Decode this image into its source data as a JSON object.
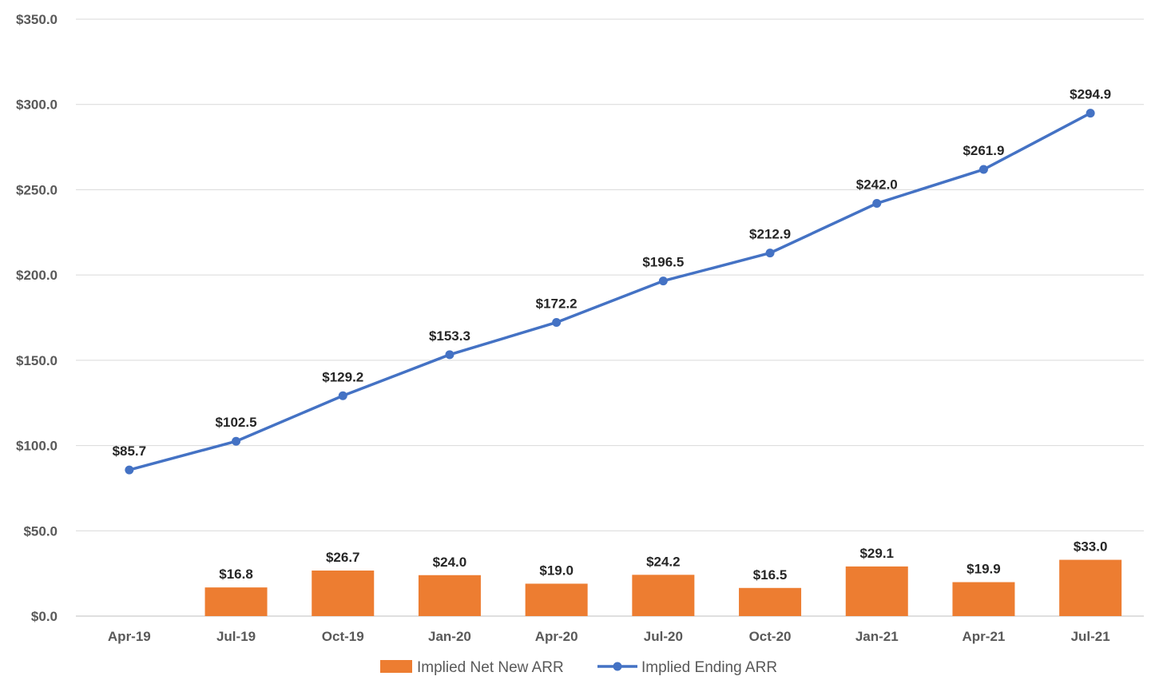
{
  "chart_data": {
    "type": "bar",
    "categories": [
      "Apr-19",
      "Jul-19",
      "Oct-19",
      "Jan-20",
      "Apr-20",
      "Jul-20",
      "Oct-20",
      "Jan-21",
      "Apr-21",
      "Jul-21"
    ],
    "series": [
      {
        "name": "Implied Net New ARR",
        "type": "bar",
        "color": "#ED7D31",
        "values": [
          null,
          16.8,
          26.7,
          24.0,
          19.0,
          24.2,
          16.5,
          29.1,
          19.9,
          33.0
        ],
        "labels": [
          "",
          "$16.8",
          "$26.7",
          "$24.0",
          "$19.0",
          "$24.2",
          "$16.5",
          "$29.1",
          "$19.9",
          "$33.0"
        ]
      },
      {
        "name": "Implied Ending ARR",
        "type": "line",
        "color": "#4472C4",
        "values": [
          85.7,
          102.5,
          129.2,
          153.3,
          172.2,
          196.5,
          212.9,
          242.0,
          261.9,
          294.9
        ],
        "labels": [
          "$85.7",
          "$102.5",
          "$129.2",
          "$153.3",
          "$172.2",
          "$196.5",
          "$212.9",
          "$242.0",
          "$261.9",
          "$294.9"
        ]
      }
    ],
    "yticks": [
      0,
      50,
      100,
      150,
      200,
      250,
      300,
      350
    ],
    "ytick_labels": [
      "$0.0",
      "$50.0",
      "$100.0",
      "$150.0",
      "$200.0",
      "$250.0",
      "$300.0",
      "$350.0"
    ],
    "ylim": [
      0,
      350
    ],
    "grid": true,
    "legend_position": "bottom",
    "title": "",
    "xlabel": "",
    "ylabel": ""
  }
}
